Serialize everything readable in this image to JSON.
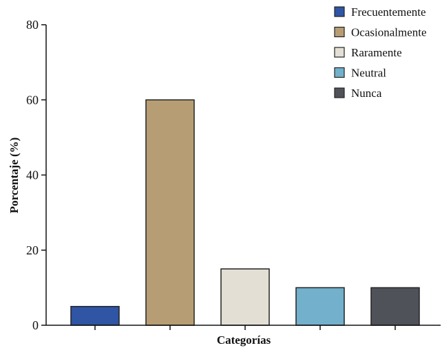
{
  "chart_data": {
    "type": "bar",
    "title": "",
    "xlabel": "Categorías",
    "ylabel": "Porcentaje (%)",
    "ylim": [
      0,
      80
    ],
    "yticks": [
      0,
      20,
      40,
      60,
      80
    ],
    "grid": false,
    "legend_position": "top-right",
    "categories": [
      "Frecuentemente",
      "Ocasionalmente",
      "Raramente",
      "Neutral",
      "Nunca"
    ],
    "values": [
      5,
      60,
      15,
      10,
      10
    ],
    "colors": [
      "#2f55a4",
      "#b79d73",
      "#e3dfd5",
      "#72b0cb",
      "#4f5359"
    ]
  }
}
